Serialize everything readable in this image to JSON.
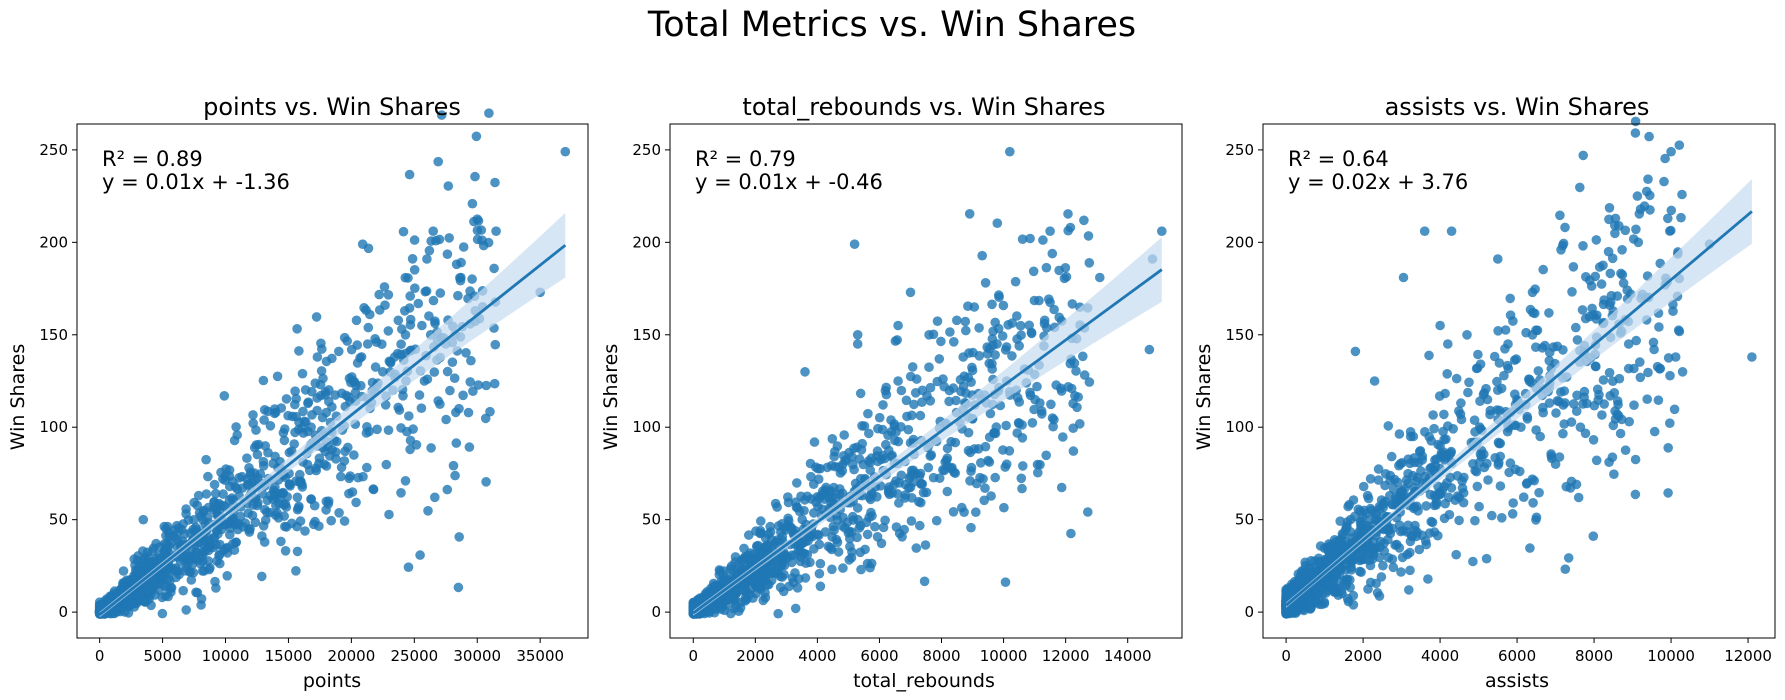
{
  "figure": {
    "suptitle": "Total Metrics vs. Win Shares"
  },
  "colors": {
    "points": "#1f77b4",
    "line": "#1f77b4",
    "band": "#c6dbef"
  },
  "chart_data": [
    {
      "type": "scatter",
      "title": "points vs. Win Shares",
      "xlabel": "points",
      "ylabel": "Win Shares",
      "xlim": [
        -1800,
        38800
      ],
      "ylim": [
        -14,
        264
      ],
      "xticks": [
        0,
        5000,
        10000,
        15000,
        20000,
        25000,
        30000,
        35000
      ],
      "yticks": [
        0,
        50,
        100,
        150,
        200,
        250
      ],
      "annotation": {
        "r2": "R² = 0.89",
        "equation": "y = 0.01x + -1.36"
      },
      "regression": {
        "slope": 0.0054,
        "intercept": -1.36,
        "x_range": [
          0,
          37000
        ]
      },
      "outliers": [
        [
          37000,
          249
        ],
        [
          31500,
          206
        ],
        [
          26500,
          206
        ],
        [
          26000,
          191
        ],
        [
          20900,
          199
        ],
        [
          28700,
          181
        ],
        [
          35000,
          173
        ],
        [
          28300,
          108
        ],
        [
          24900,
          99
        ],
        [
          23300,
          120
        ],
        [
          25800,
          125
        ],
        [
          24300,
          150
        ],
        [
          25600,
          155
        ],
        [
          26300,
          150
        ],
        [
          21300,
          145
        ],
        [
          22000,
          146
        ],
        [
          17300,
          138
        ],
        [
          19000,
          141
        ],
        [
          18200,
          60
        ],
        [
          9900,
          117
        ],
        [
          20200,
          85
        ],
        [
          19500,
          87
        ],
        [
          16800,
          100
        ],
        [
          22500,
          130
        ],
        [
          27500,
          145
        ]
      ],
      "cloud_note": "dense point cloud along the regression line (approx. 1300 players)"
    },
    {
      "type": "scatter",
      "title": "total_rebounds vs. Win Shares",
      "xlabel": "total_rebounds",
      "ylabel": "Win Shares",
      "xlim": [
        -750,
        15750
      ],
      "ylim": [
        -14,
        264
      ],
      "xticks": [
        0,
        2000,
        4000,
        6000,
        8000,
        10000,
        12000,
        14000
      ],
      "yticks": [
        0,
        50,
        100,
        150,
        200,
        250
      ],
      "annotation": {
        "r2": "R² = 0.79",
        "equation": "y = 0.01x + -0.46"
      },
      "regression": {
        "slope": 0.0123,
        "intercept": -0.46,
        "x_range": [
          0,
          15100
        ]
      },
      "outliers": [
        [
          10200,
          249
        ],
        [
          11500,
          206
        ],
        [
          15100,
          206
        ],
        [
          14800,
          191
        ],
        [
          5200,
          199
        ],
        [
          13100,
          181
        ],
        [
          7000,
          173
        ],
        [
          6600,
          155
        ],
        [
          5300,
          150
        ],
        [
          7600,
          150
        ],
        [
          5300,
          145
        ],
        [
          11300,
          144
        ],
        [
          14700,
          142
        ],
        [
          8700,
          138
        ],
        [
          12300,
          117
        ],
        [
          9500,
          82
        ],
        [
          10100,
          80
        ],
        [
          9400,
          67
        ],
        [
          3300,
          2
        ],
        [
          5700,
          24
        ],
        [
          10100,
          125
        ],
        [
          6600,
          125
        ],
        [
          3600,
          130
        ],
        [
          10500,
          102
        ],
        [
          9700,
          97
        ]
      ],
      "cloud_note": "dense point cloud along the regression line (approx. 1300 players)"
    },
    {
      "type": "scatter",
      "title": "assists vs. Win Shares",
      "xlabel": "assists",
      "ylabel": "Win Shares",
      "xlim": [
        -600,
        12700
      ],
      "ylim": [
        -14,
        264
      ],
      "xticks": [
        0,
        2000,
        4000,
        6000,
        8000,
        10000,
        12000
      ],
      "yticks": [
        0,
        50,
        100,
        150,
        200,
        250
      ],
      "annotation": {
        "r2": "R² = 0.64",
        "equation": "y = 0.02x + 3.76"
      },
      "regression": {
        "slope": 0.0176,
        "intercept": 3.76,
        "x_range": [
          0,
          12100
        ]
      },
      "outliers": [
        [
          10000,
          249
        ],
        [
          3600,
          206
        ],
        [
          4300,
          206
        ],
        [
          5500,
          191
        ],
        [
          3050,
          181
        ],
        [
          11000,
          199
        ],
        [
          6400,
          173
        ],
        [
          4000,
          155
        ],
        [
          4200,
          145
        ],
        [
          4700,
          150
        ],
        [
          6400,
          150
        ],
        [
          8900,
          145
        ],
        [
          10300,
          130
        ],
        [
          12100,
          138
        ],
        [
          1800,
          141
        ],
        [
          7600,
          62
        ],
        [
          8500,
          101
        ],
        [
          8600,
          107
        ],
        [
          7200,
          112
        ],
        [
          2300,
          125
        ],
        [
          5500,
          120
        ],
        [
          5600,
          121
        ],
        [
          6100,
          100
        ],
        [
          7000,
          80
        ],
        [
          5900,
          59
        ]
      ],
      "cloud_note": "dense point cloud along the regression line (approx. 1300 players)"
    }
  ]
}
